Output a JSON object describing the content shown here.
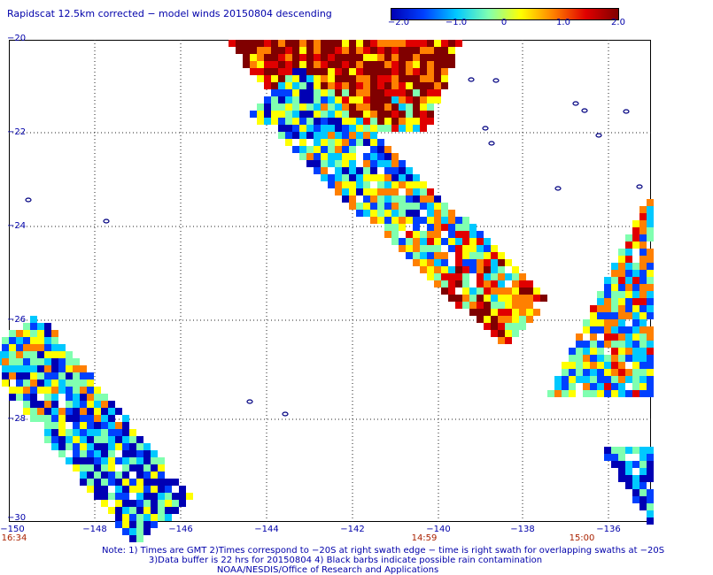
{
  "title": "Rapidscat 12.5km corrected − model winds 20150804 descending",
  "colorbar": {
    "labels": [
      "−2.0",
      "−1.0",
      "0",
      "1.0",
      "2.0"
    ],
    "range": [
      -2.0,
      2.0
    ],
    "colors": [
      "#0000b4",
      "#0040ff",
      "#00c8ff",
      "#80ffb0",
      "#ffff00",
      "#ff8000",
      "#e00000",
      "#800000"
    ]
  },
  "map": {
    "lat_labels": [
      "−20",
      "−22",
      "−24",
      "−26",
      "−28",
      "−30"
    ],
    "lon_labels": [
      "−150",
      "−148",
      "−146",
      "−144",
      "−142",
      "−140",
      "−138",
      "−136"
    ],
    "lat_range": [
      -30,
      -20
    ],
    "lon_range": [
      -150,
      -135.5
    ],
    "grid": true,
    "island_color": "#000080"
  },
  "time_labels": [
    "16:34",
    "14:59",
    "15:00"
  ],
  "notes": [
    "Note: 1) Times are GMT 2)Times correspond to −20S at right swath edge − time is right swath for overlapping swaths at −20S",
    "3)Data buffer is 22 hrs for 20150804 4) Black barbs indicate possible rain contamination",
    "NOAA/NESDIS/Office of Research and Applications"
  ]
}
